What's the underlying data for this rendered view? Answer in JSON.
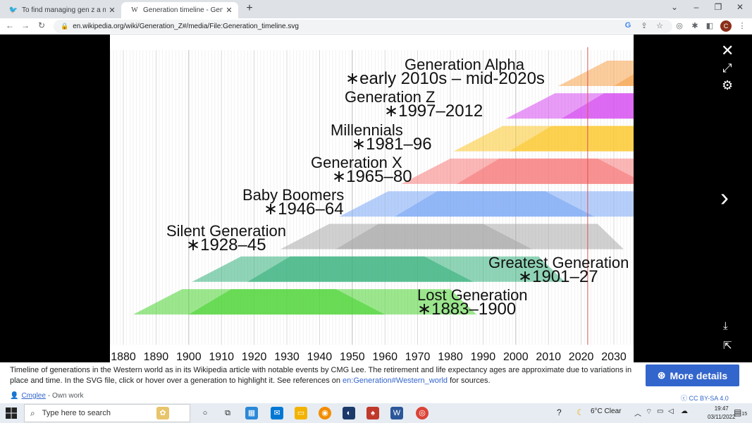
{
  "browser": {
    "tabs": [
      {
        "favicon": "bird-favicon",
        "title": "To find managing gen z a massive",
        "active": false
      },
      {
        "favicon": "W",
        "title": "Generation timeline - Generation",
        "active": true
      }
    ],
    "url": "en.wikipedia.org/wiki/Generation_Z#/media/File:Generation_timeline.svg",
    "profile_initial": "C"
  },
  "caption": {
    "description_pre": "Timeline of generations in the Western world as in its Wikipedia article with notable events by CMG Lee. The retirement and life expectancy ages are approximate due to variations in place and time. In the SVG file, click or hover over a generation to highlight it. See references on ",
    "description_link": "en:Generation#Western_world",
    "description_post": " for sources.",
    "author": "Cmglee",
    "author_suffix": "- Own work",
    "more_details": "More details",
    "license": "CC BY-SA 4.0"
  },
  "taskbar": {
    "search_placeholder": "Type here to search",
    "weather": "6°C  Clear",
    "time": "19:47",
    "date": "03/11/2022",
    "notification_count": "15"
  },
  "chart_data": {
    "type": "timeline",
    "x_ticks": [
      1880,
      1890,
      1900,
      1910,
      1920,
      1930,
      1940,
      1950,
      1960,
      1970,
      1980,
      1990,
      2000,
      2010,
      2020,
      2030
    ],
    "current_year_marker": 2022,
    "generations": [
      {
        "name": "Generation Alpha",
        "range_label": "∗early 2010s – mid-2020s",
        "start": 2013,
        "end": 2025,
        "color": "#f7a24b"
      },
      {
        "name": "Generation Z",
        "range_label": "∗1997–2012",
        "start": 1997,
        "end": 2012,
        "color": "#d54af0"
      },
      {
        "name": "Millennials",
        "range_label": "∗1981–96",
        "start": 1981,
        "end": 1996,
        "color": "#fcc72a"
      },
      {
        "name": "Generation X",
        "range_label": "∗1965–80",
        "start": 1965,
        "end": 1980,
        "color": "#f77a7a"
      },
      {
        "name": "Baby Boomers",
        "range_label": "∗1946–64",
        "start": 1946,
        "end": 1964,
        "color": "#7aa7f5"
      },
      {
        "name": "Silent Generation",
        "range_label": "∗1928–45",
        "start": 1928,
        "end": 1945,
        "color": "#a9a9a9"
      },
      {
        "name": "Greatest Generation",
        "range_label": "∗1901–27",
        "start": 1901,
        "end": 1927,
        "color": "#35b07c"
      },
      {
        "name": "Lost Generation",
        "range_label": "∗1883–1900",
        "start": 1883,
        "end": 1900,
        "color": "#4ad431"
      }
    ]
  }
}
